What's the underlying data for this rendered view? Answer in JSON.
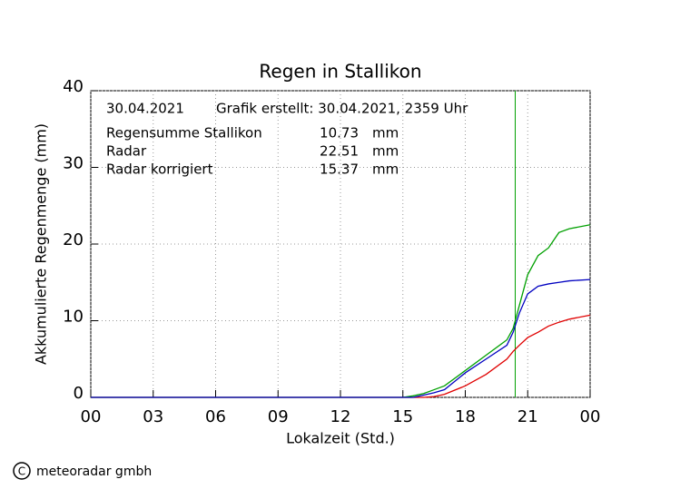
{
  "chart_data": {
    "type": "line",
    "title": "Regen in Stallikon",
    "xlabel": "Lokalzeit (Std.)",
    "ylabel": "Akkumulierte Regenmenge (mm)",
    "date": "30.04.2021",
    "created": "Grafik erstellt: 30.04.2021, 2359 Uhr",
    "unit": "mm",
    "copyright": "meteoradar gmbh",
    "x": [
      0,
      15,
      15.5,
      16,
      16.5,
      17,
      18,
      19,
      20,
      20.3,
      20.6,
      21,
      21.5,
      22,
      22.5,
      23,
      24
    ],
    "series": [
      {
        "name": "Regensumme Stallikon",
        "color": "#e00000",
        "total": 10.73,
        "values": [
          0,
          0,
          0,
          0,
          0.1,
          0.4,
          1.5,
          3,
          5,
          6,
          6.8,
          7.8,
          8.5,
          9.3,
          9.8,
          10.2,
          10.73
        ]
      },
      {
        "name": "Radar",
        "color": "#00a000",
        "total": 22.51,
        "values": [
          0,
          0,
          0.2,
          0.5,
          1,
          1.5,
          3.5,
          5.5,
          7.5,
          9,
          12,
          16,
          18.5,
          19.5,
          21.5,
          22,
          22.51
        ]
      },
      {
        "name": "Radar korrigiert",
        "color": "#0000c0",
        "total": 15.37,
        "values": [
          0,
          0,
          0,
          0.3,
          0.6,
          1,
          3.2,
          5,
          6.8,
          8.5,
          11,
          13.5,
          14.5,
          14.8,
          15,
          15.2,
          15.37
        ]
      }
    ],
    "marker_x": 20.4,
    "marker_color": "#00a000",
    "xlim": [
      0,
      24
    ],
    "xticks": [
      {
        "value": 0,
        "label": "00"
      },
      {
        "value": 3,
        "label": "03"
      },
      {
        "value": 6,
        "label": "06"
      },
      {
        "value": 9,
        "label": "09"
      },
      12,
      15,
      18,
      21,
      {
        "value": 24,
        "label": "00"
      }
    ],
    "ylim": [
      0,
      40
    ],
    "yticks": [
      0,
      10,
      20,
      30,
      40
    ],
    "grid": true
  }
}
